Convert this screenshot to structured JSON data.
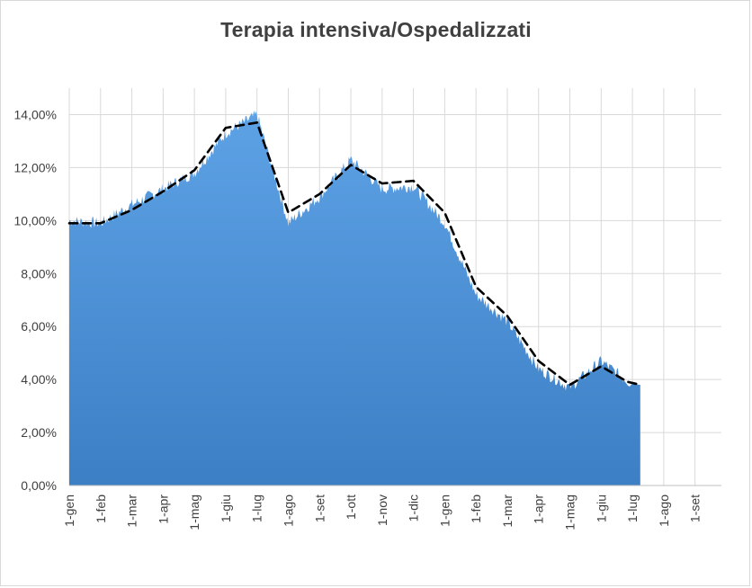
{
  "chart_data": {
    "type": "area",
    "title": "Terapia intensiva/Ospedalizzati",
    "xlabel": "",
    "ylabel": "",
    "ylim": [
      0,
      0.15
    ],
    "y_ticks": [
      "0,00%",
      "2,00%",
      "4,00%",
      "6,00%",
      "8,00%",
      "10,00%",
      "12,00%",
      "14,00%"
    ],
    "x_ticks": [
      "1-gen",
      "1-feb",
      "1-mar",
      "1-apr",
      "1-mag",
      "1-giu",
      "1-lug",
      "1-ago",
      "1-set",
      "1-ott",
      "1-nov",
      "1-dic",
      "1-gen",
      "1-feb",
      "1-mar",
      "1-apr",
      "1-mag",
      "1-giu",
      "1-lug",
      "1-ago",
      "1-set"
    ],
    "grid": true,
    "colors": {
      "area": "#4a90d9",
      "area_dark": "#3d7fc4",
      "moving_avg": "#000000",
      "grid": "#d9d9d9",
      "axis": "#bfbfbf"
    },
    "series": [
      {
        "values_by_month": [
          "1-gen",
          "1-feb",
          "1-mar",
          "1-apr",
          "1-mag",
          "1-giu",
          "1-lug",
          "1-ago",
          "1-set",
          "1-ott",
          "1-nov",
          "1-dic",
          "1-gen",
          "1-feb",
          "1-mar",
          "1-apr",
          "1-mag",
          "1-giu",
          "1-lug"
        ],
        "daily_area": [
          0.1,
          0.099,
          0.106,
          0.112,
          0.118,
          0.133,
          0.14,
          0.099,
          0.109,
          0.123,
          0.112,
          0.113,
          0.099,
          0.072,
          0.062,
          0.044,
          0.037,
          0.047,
          0.038
        ],
        "moving_avg": [
          0.099,
          0.099,
          0.104,
          0.111,
          0.119,
          0.135,
          0.137,
          0.103,
          0.11,
          0.121,
          0.114,
          0.115,
          0.103,
          0.075,
          0.064,
          0.047,
          0.038,
          0.045,
          0.038
        ]
      }
    ]
  }
}
